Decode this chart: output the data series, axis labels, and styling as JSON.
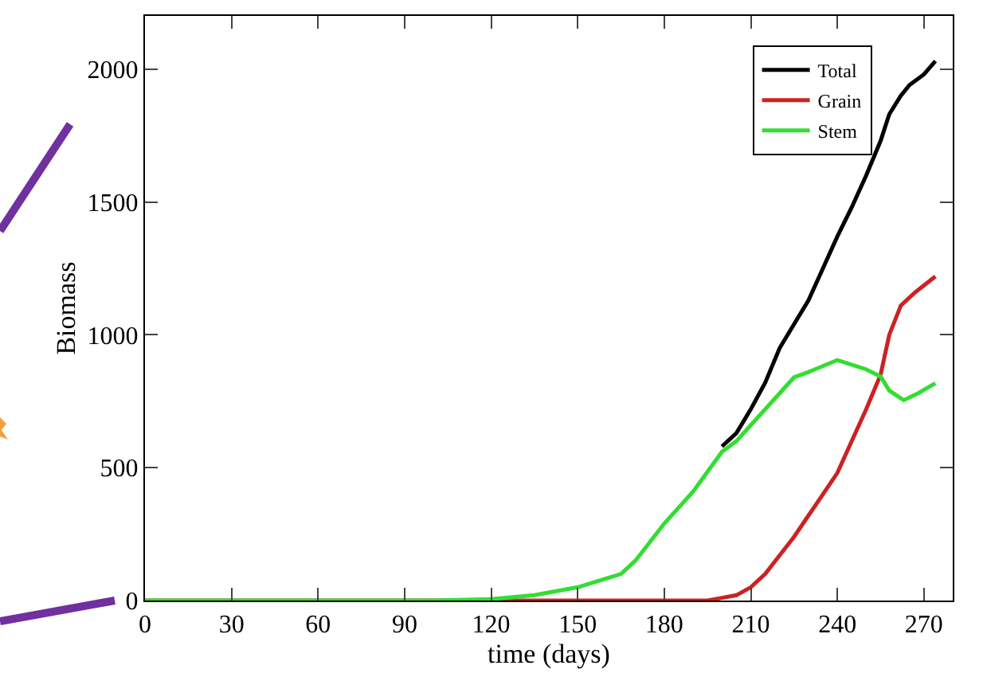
{
  "chart_data": {
    "type": "line",
    "xlabel": "time (days)",
    "ylabel": "Biomass",
    "xlim": [
      0,
      280
    ],
    "xticks": [
      0,
      30,
      60,
      90,
      120,
      150,
      180,
      210,
      240,
      270
    ],
    "ylim": [
      0,
      2200
    ],
    "yticks": [
      0,
      500,
      1000,
      1500,
      2000
    ],
    "grid": false,
    "legend": "top right",
    "marker": "none",
    "line_style": "solid",
    "series": [
      {
        "name": "Total",
        "color": "#000000",
        "x": [
          200,
          205,
          210,
          215,
          220,
          225,
          230,
          235,
          240,
          245,
          250,
          255,
          258,
          262,
          265,
          270,
          274
        ],
        "values": [
          580,
          630,
          720,
          820,
          950,
          1040,
          1130,
          1250,
          1370,
          1480,
          1600,
          1730,
          1830,
          1900,
          1940,
          1980,
          2030
        ]
      },
      {
        "name": "Grain",
        "color": "#cc2222",
        "x": [
          0,
          195,
          200,
          205,
          210,
          215,
          220,
          225,
          230,
          235,
          240,
          245,
          250,
          255,
          258,
          262,
          267,
          274
        ],
        "values": [
          0,
          0,
          10,
          20,
          50,
          100,
          170,
          240,
          320,
          400,
          480,
          600,
          720,
          850,
          1000,
          1110,
          1160,
          1220
        ]
      },
      {
        "name": "Stem",
        "color": "#33dd33",
        "x": [
          0,
          100,
          120,
          135,
          150,
          165,
          170,
          180,
          190,
          200,
          205,
          210,
          220,
          225,
          230,
          240,
          250,
          255,
          258,
          263,
          268,
          274
        ],
        "values": [
          0,
          0,
          5,
          20,
          50,
          100,
          150,
          290,
          410,
          560,
          600,
          660,
          780,
          840,
          860,
          905,
          870,
          843,
          790,
          754,
          780,
          818
        ]
      }
    ]
  }
}
